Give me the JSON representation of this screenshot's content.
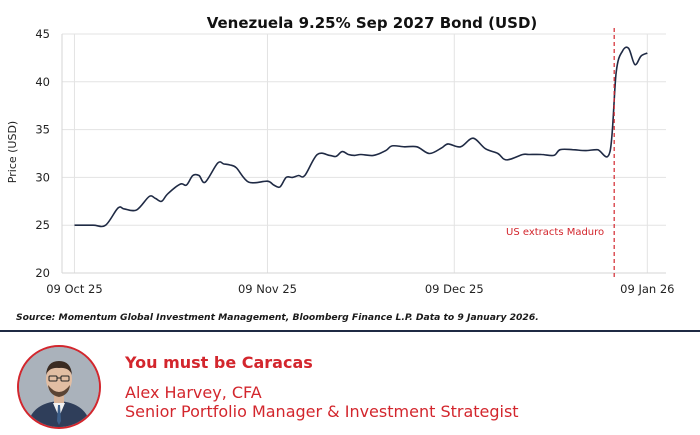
{
  "chart_data": {
    "type": "line",
    "title": "Venezuela 9.25% Sep 2027 Bond (USD)",
    "ylabel": "Price (USD)",
    "xlabel": "",
    "ylim": [
      20,
      45
    ],
    "yticks": [
      20,
      25,
      30,
      35,
      40,
      45
    ],
    "xticks": [
      "09 Oct 25",
      "09 Nov 25",
      "09 Dec 25",
      "09 Jan 26"
    ],
    "xtick_dates": [
      "2025-10-09",
      "2025-11-09",
      "2025-12-09",
      "2026-01-09"
    ],
    "grid": true,
    "line_color": "#1f2a44",
    "series": [
      {
        "x": [
          "2025-10-09",
          "2025-10-12",
          "2025-10-14",
          "2025-10-16",
          "2025-10-17",
          "2025-10-19",
          "2025-10-21",
          "2025-10-22",
          "2025-10-23",
          "2025-10-24",
          "2025-10-26",
          "2025-10-27",
          "2025-10-28",
          "2025-10-29",
          "2025-10-30",
          "2025-11-01",
          "2025-11-02",
          "2025-11-03",
          "2025-11-04",
          "2025-11-06",
          "2025-11-09",
          "2025-11-10",
          "2025-11-11",
          "2025-11-12",
          "2025-11-13",
          "2025-11-14",
          "2025-11-15",
          "2025-11-17",
          "2025-11-19",
          "2025-11-20",
          "2025-11-21",
          "2025-11-22",
          "2025-11-23",
          "2025-11-24",
          "2025-11-26",
          "2025-11-28",
          "2025-11-29",
          "2025-12-01",
          "2025-12-03",
          "2025-12-05",
          "2025-12-07",
          "2025-12-08",
          "2025-12-10",
          "2025-12-12",
          "2025-12-14",
          "2025-12-16",
          "2025-12-17",
          "2025-12-18",
          "2025-12-20",
          "2025-12-21",
          "2025-12-23",
          "2025-12-25",
          "2025-12-26",
          "2025-12-28",
          "2025-12-30",
          "2026-01-01",
          "2026-01-03",
          "2026-01-04",
          "2026-01-05",
          "2026-01-06",
          "2026-01-07",
          "2026-01-08",
          "2026-01-09"
        ],
        "y": [
          25,
          25,
          25,
          26.8,
          26.7,
          26.6,
          28,
          27.8,
          27.5,
          28.3,
          29.3,
          29.2,
          30.2,
          30.2,
          29.5,
          31.5,
          31.4,
          31.3,
          31.0,
          29.5,
          29.6,
          29.2,
          29.0,
          30.0,
          30.0,
          30.2,
          30.2,
          32.4,
          32.3,
          32.2,
          32.7,
          32.4,
          32.3,
          32.4,
          32.3,
          32.8,
          33.3,
          33.2,
          33.2,
          32.5,
          33.1,
          33.5,
          33.2,
          34.1,
          33.0,
          32.5,
          31.9,
          31.9,
          32.4,
          32.4,
          32.4,
          32.3,
          32.9,
          32.9,
          32.8,
          32.9,
          32.7,
          41.0,
          43.2,
          43.5,
          41.8,
          42.7,
          43.0
        ]
      }
    ],
    "annotation": {
      "label": "US extracts Maduro",
      "date": "2026-01-04",
      "color": "#d3262d"
    }
  },
  "source_note": "Source: Momentum Global Investment Management, Bloomberg Finance L.P. Data to 9 January 2026.",
  "footer": {
    "headline": "You must be Caracas",
    "author_name": "Alex Harvey, CFA",
    "author_role": "Senior Portfolio Manager & Investment Strategist"
  },
  "colors": {
    "accent": "#d3262d",
    "navy": "#1f2a44"
  }
}
